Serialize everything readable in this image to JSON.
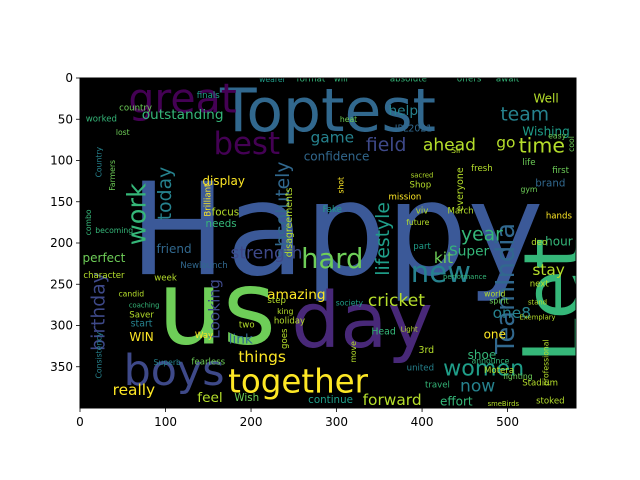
{
  "chart_data": {
    "type": "wordcloud",
    "title": "",
    "xlabel": "",
    "ylabel": "",
    "xlim": [
      0,
      580
    ],
    "ylim": [
      400,
      0
    ],
    "x_ticks": [
      0,
      100,
      200,
      300,
      400,
      500
    ],
    "y_ticks": [
      0,
      50,
      100,
      150,
      200,
      250,
      300,
      350
    ],
    "grid": false,
    "colors": {
      "background": "#000000",
      "palette": [
        "#440154",
        "#482878",
        "#3e4989",
        "#31688e",
        "#26828e",
        "#1f9e89",
        "#35b779",
        "#6ece58",
        "#b5de2b",
        "#fde725"
      ]
    },
    "words": [
      {
        "text": "Happy",
        "x": 300,
        "y": 185,
        "size": 150,
        "rot": 0,
        "color": "#3b5998"
      },
      {
        "text": "us",
        "x": 160,
        "y": 280,
        "size": 120,
        "rot": 0,
        "color": "#6ece58"
      },
      {
        "text": "Toptest",
        "x": 290,
        "y": 40,
        "size": 70,
        "rot": 0,
        "color": "#31688e"
      },
      {
        "text": "day",
        "x": 330,
        "y": 295,
        "size": 90,
        "rot": 0,
        "color": "#482878"
      },
      {
        "text": "Let",
        "x": 555,
        "y": 270,
        "size": 95,
        "rot": -90,
        "color": "#35b779"
      },
      {
        "text": "great",
        "x": 120,
        "y": 25,
        "size": 48,
        "rot": 0,
        "color": "#440154"
      },
      {
        "text": "best",
        "x": 195,
        "y": 80,
        "size": 36,
        "rot": 0,
        "color": "#440154"
      },
      {
        "text": "boys",
        "x": 110,
        "y": 355,
        "size": 50,
        "rot": 0,
        "color": "#3e4989"
      },
      {
        "text": "together",
        "x": 255,
        "y": 368,
        "size": 38,
        "rot": 0,
        "color": "#fde725"
      },
      {
        "text": "hard",
        "x": 295,
        "y": 220,
        "size": 32,
        "rot": 0,
        "color": "#6ece58"
      },
      {
        "text": "new",
        "x": 422,
        "y": 235,
        "size": 34,
        "rot": 0,
        "color": "#26828e"
      },
      {
        "text": "women",
        "x": 472,
        "y": 352,
        "size": 26,
        "rot": 0,
        "color": "#1f9e89"
      },
      {
        "text": "TeamIndia",
        "x": 498,
        "y": 255,
        "size": 30,
        "rot": -90,
        "color": "#31688e"
      },
      {
        "text": "work",
        "x": 67,
        "y": 165,
        "size": 30,
        "rot": -90,
        "color": "#35b779"
      },
      {
        "text": "today",
        "x": 100,
        "y": 140,
        "size": 22,
        "rot": -90,
        "color": "#26828e"
      },
      {
        "text": "absolutely",
        "x": 238,
        "y": 160,
        "size": 22,
        "rot": -90,
        "color": "#31688e"
      },
      {
        "text": "lifestyle",
        "x": 355,
        "y": 195,
        "size": 22,
        "rot": -90,
        "color": "#1f9e89"
      },
      {
        "text": "strength",
        "x": 218,
        "y": 213,
        "size": 20,
        "rot": 0,
        "color": "#3e4989"
      },
      {
        "text": "time",
        "x": 540,
        "y": 82,
        "size": 24,
        "rot": 0,
        "color": "#b5de2b"
      },
      {
        "text": "ahead",
        "x": 432,
        "y": 82,
        "size": 20,
        "rot": 0,
        "color": "#b5de2b"
      },
      {
        "text": "field",
        "x": 358,
        "y": 82,
        "size": 22,
        "rot": 0,
        "color": "#3e4989"
      },
      {
        "text": "go",
        "x": 498,
        "y": 78,
        "size": 18,
        "rot": 0,
        "color": "#b5de2b"
      },
      {
        "text": "team",
        "x": 520,
        "y": 45,
        "size": 22,
        "rot": 0,
        "color": "#26828e"
      },
      {
        "text": "year",
        "x": 470,
        "y": 190,
        "size": 22,
        "rot": 0,
        "color": "#35b779"
      },
      {
        "text": "cricket",
        "x": 370,
        "y": 270,
        "size": 20,
        "rot": 0,
        "color": "#b5de2b"
      },
      {
        "text": "stay",
        "x": 548,
        "y": 233,
        "size": 18,
        "rot": 0,
        "color": "#b5de2b"
      },
      {
        "text": "one8",
        "x": 505,
        "y": 285,
        "size": 18,
        "rot": 0,
        "color": "#26828e"
      },
      {
        "text": "Super",
        "x": 455,
        "y": 210,
        "size": 16,
        "rot": 0,
        "color": "#35b779"
      },
      {
        "text": "kit",
        "x": 425,
        "y": 218,
        "size": 18,
        "rot": 0,
        "color": "#6ece58"
      },
      {
        "text": "game",
        "x": 295,
        "y": 72,
        "size": 18,
        "rot": 0,
        "color": "#26828e"
      },
      {
        "text": "help",
        "x": 378,
        "y": 40,
        "size": 16,
        "rot": 0,
        "color": "#26828e"
      },
      {
        "text": "outstanding",
        "x": 120,
        "y": 45,
        "size": 16,
        "rot": 0,
        "color": "#35b779"
      },
      {
        "text": "confidence",
        "x": 300,
        "y": 95,
        "size": 14,
        "rot": 0,
        "color": "#31688e"
      },
      {
        "text": "Wishing",
        "x": 545,
        "y": 65,
        "size": 14,
        "rot": 0,
        "color": "#1f9e89"
      },
      {
        "text": "Well",
        "x": 545,
        "y": 25,
        "size": 14,
        "rot": 0,
        "color": "#b5de2b"
      },
      {
        "text": "IPL2021",
        "x": 390,
        "y": 62,
        "size": 11,
        "rot": 0,
        "color": "#31688e"
      },
      {
        "text": "amazing",
        "x": 253,
        "y": 263,
        "size": 16,
        "rot": 0,
        "color": "#fde725"
      },
      {
        "text": "birthday",
        "x": 22,
        "y": 283,
        "size": 22,
        "rot": -90,
        "color": "#3e4989"
      },
      {
        "text": "Looking",
        "x": 157,
        "y": 280,
        "size": 18,
        "rot": -90,
        "color": "#3e4989"
      },
      {
        "text": "link",
        "x": 188,
        "y": 317,
        "size": 16,
        "rot": 0,
        "color": "#31688e"
      },
      {
        "text": "things",
        "x": 213,
        "y": 338,
        "size": 18,
        "rot": 0,
        "color": "#fde725"
      },
      {
        "text": "really",
        "x": 63,
        "y": 378,
        "size": 18,
        "rot": 0,
        "color": "#fde725"
      },
      {
        "text": "feel",
        "x": 152,
        "y": 388,
        "size": 16,
        "rot": 0,
        "color": "#b5de2b"
      },
      {
        "text": "forward",
        "x": 365,
        "y": 390,
        "size": 18,
        "rot": 0,
        "color": "#b5de2b"
      },
      {
        "text": "continue",
        "x": 293,
        "y": 390,
        "size": 12,
        "rot": 0,
        "color": "#1f9e89"
      },
      {
        "text": "now",
        "x": 465,
        "y": 374,
        "size": 20,
        "rot": 0,
        "color": "#26828e"
      },
      {
        "text": "shoe",
        "x": 470,
        "y": 336,
        "size": 14,
        "rot": 0,
        "color": "#35b779"
      },
      {
        "text": "one",
        "x": 485,
        "y": 311,
        "size": 14,
        "rot": 0,
        "color": "#fde725"
      },
      {
        "text": "effort",
        "x": 440,
        "y": 392,
        "size": 14,
        "rot": 0,
        "color": "#35b779"
      },
      {
        "text": "display",
        "x": 168,
        "y": 125,
        "size": 14,
        "rot": 0,
        "color": "#fde725"
      },
      {
        "text": "perfect",
        "x": 28,
        "y": 218,
        "size": 14,
        "rot": 0,
        "color": "#6ece58"
      },
      {
        "text": "friend",
        "x": 110,
        "y": 207,
        "size": 14,
        "rot": 0,
        "color": "#31688e"
      },
      {
        "text": "WIN",
        "x": 72,
        "y": 314,
        "size": 14,
        "rot": 0,
        "color": "#fde725"
      },
      {
        "text": "start",
        "x": 72,
        "y": 298,
        "size": 11,
        "rot": 0,
        "color": "#26828e"
      },
      {
        "text": "hour",
        "x": 560,
        "y": 198,
        "size": 14,
        "rot": 0,
        "color": "#35b779"
      },
      {
        "text": "brand",
        "x": 550,
        "y": 128,
        "size": 12,
        "rot": 0,
        "color": "#31688e"
      },
      {
        "text": "focus",
        "x": 170,
        "y": 163,
        "size": 12,
        "rot": 0,
        "color": "#b5de2b"
      },
      {
        "text": "needs",
        "x": 165,
        "y": 177,
        "size": 12,
        "rot": 0,
        "color": "#35b779"
      },
      {
        "text": "Newlaunch",
        "x": 145,
        "y": 228,
        "size": 10,
        "rot": 0,
        "color": "#31688e"
      },
      {
        "text": "Way",
        "x": 145,
        "y": 313,
        "size": 10,
        "rot": 0,
        "color": "#fde725"
      },
      {
        "text": "Wish",
        "x": 195,
        "y": 388,
        "size": 12,
        "rot": 0,
        "color": "#6ece58"
      },
      {
        "text": "Head",
        "x": 355,
        "y": 308,
        "size": 11,
        "rot": 0,
        "color": "#35b779"
      },
      {
        "text": "3rd",
        "x": 405,
        "y": 330,
        "size": 11,
        "rot": 0,
        "color": "#b5de2b"
      },
      {
        "text": "travel",
        "x": 418,
        "y": 373,
        "size": 10,
        "rot": 0,
        "color": "#35b779"
      },
      {
        "text": "Stadium",
        "x": 538,
        "y": 370,
        "size": 10,
        "rot": 0,
        "color": "#b5de2b"
      },
      {
        "text": "Motera",
        "x": 490,
        "y": 355,
        "size": 10,
        "rot": 0,
        "color": "#b5de2b"
      },
      {
        "text": "fighting",
        "x": 512,
        "y": 362,
        "size": 9,
        "rot": 0,
        "color": "#6ece58"
      },
      {
        "text": "announce",
        "x": 480,
        "y": 343,
        "size": 9,
        "rot": 0,
        "color": "#35b779"
      },
      {
        "text": "stoked",
        "x": 550,
        "y": 392,
        "size": 10,
        "rot": 0,
        "color": "#b5de2b"
      },
      {
        "text": "fearless",
        "x": 150,
        "y": 345,
        "size": 10,
        "rot": 0,
        "color": "#6ece58"
      },
      {
        "text": "Superb",
        "x": 102,
        "y": 345,
        "size": 9,
        "rot": 0,
        "color": "#26828e"
      },
      {
        "text": "Saver",
        "x": 72,
        "y": 288,
        "size": 10,
        "rot": 0,
        "color": "#b5de2b"
      },
      {
        "text": "Consistency",
        "x": 22,
        "y": 336,
        "size": 9,
        "rot": -90,
        "color": "#26828e"
      },
      {
        "text": "Brilliant",
        "x": 150,
        "y": 148,
        "size": 10,
        "rot": -90,
        "color": "#fde725"
      },
      {
        "text": "combo",
        "x": 10,
        "y": 175,
        "size": 9,
        "rot": -90,
        "color": "#35b779"
      },
      {
        "text": "Farmers",
        "x": 38,
        "y": 118,
        "size": 9,
        "rot": -90,
        "color": "#6ece58"
      },
      {
        "text": "Country",
        "x": 22,
        "y": 102,
        "size": 9,
        "rot": -90,
        "color": "#26828e"
      },
      {
        "text": "worked",
        "x": 25,
        "y": 50,
        "size": 10,
        "rot": 0,
        "color": "#35b779"
      },
      {
        "text": "country",
        "x": 65,
        "y": 37,
        "size": 10,
        "rot": 0,
        "color": "#6ece58"
      },
      {
        "text": "finals",
        "x": 150,
        "y": 22,
        "size": 10,
        "rot": 0,
        "color": "#1f9e89"
      },
      {
        "text": "format",
        "x": 270,
        "y": 2,
        "size": 10,
        "rot": 0,
        "color": "#35b779"
      },
      {
        "text": "will",
        "x": 305,
        "y": 2,
        "size": 10,
        "rot": 0,
        "color": "#35b779"
      },
      {
        "text": "absolute",
        "x": 384,
        "y": 2,
        "size": 10,
        "rot": 0,
        "color": "#35b779"
      },
      {
        "text": "offers",
        "x": 455,
        "y": 2,
        "size": 10,
        "rot": 0,
        "color": "#35b779"
      },
      {
        "text": "await",
        "x": 500,
        "y": 2,
        "size": 10,
        "rot": 0,
        "color": "#35b779"
      },
      {
        "text": "wearer",
        "x": 225,
        "y": 2,
        "size": 9,
        "rot": 0,
        "color": "#1f9e89"
      },
      {
        "text": "heat",
        "x": 314,
        "y": 50,
        "size": 9,
        "rot": 0,
        "color": "#6ece58"
      },
      {
        "text": "cool",
        "x": 575,
        "y": 80,
        "size": 9,
        "rot": -90,
        "color": "#6ece58"
      },
      {
        "text": "first",
        "x": 562,
        "y": 113,
        "size": 10,
        "rot": 0,
        "color": "#6ece58"
      },
      {
        "text": "life",
        "x": 525,
        "y": 103,
        "size": 10,
        "rot": 0,
        "color": "#6ece58"
      },
      {
        "text": "gym",
        "x": 525,
        "y": 135,
        "size": 9,
        "rot": 0,
        "color": "#6ece58"
      },
      {
        "text": "hands",
        "x": 560,
        "y": 168,
        "size": 10,
        "rot": 0,
        "color": "#fde725"
      },
      {
        "text": "easy",
        "x": 558,
        "y": 70,
        "size": 9,
        "rot": 0,
        "color": "#6ece58"
      },
      {
        "text": "next",
        "x": 537,
        "y": 250,
        "size": 10,
        "rot": 0,
        "color": "#b5de2b"
      },
      {
        "text": "deo",
        "x": 537,
        "y": 200,
        "size": 10,
        "rot": 0,
        "color": "#b5de2b"
      },
      {
        "text": "Shop",
        "x": 398,
        "y": 130,
        "size": 10,
        "rot": 0,
        "color": "#b5de2b"
      },
      {
        "text": "March",
        "x": 445,
        "y": 162,
        "size": 10,
        "rot": 0,
        "color": "#b5de2b"
      },
      {
        "text": "fresh",
        "x": 470,
        "y": 110,
        "size": 10,
        "rot": 0,
        "color": "#b5de2b"
      },
      {
        "text": "everyone",
        "x": 445,
        "y": 135,
        "size": 11,
        "rot": -90,
        "color": "#b5de2b"
      },
      {
        "text": "mission",
        "x": 380,
        "y": 145,
        "size": 10,
        "rot": 0,
        "color": "#fde725"
      },
      {
        "text": "future",
        "x": 395,
        "y": 175,
        "size": 9,
        "rot": 0,
        "color": "#b5de2b"
      },
      {
        "text": "viv",
        "x": 400,
        "y": 162,
        "size": 10,
        "rot": 0,
        "color": "#b5de2b"
      },
      {
        "text": "Sir",
        "x": 440,
        "y": 88,
        "size": 9,
        "rot": 0,
        "color": "#b5de2b"
      },
      {
        "text": "Fake",
        "x": 295,
        "y": 160,
        "size": 10,
        "rot": 0,
        "color": "#1f9e89"
      },
      {
        "text": "holiday",
        "x": 245,
        "y": 295,
        "size": 10,
        "rot": 0,
        "color": "#b5de2b"
      },
      {
        "text": "step",
        "x": 230,
        "y": 270,
        "size": 10,
        "rot": 0,
        "color": "#b5de2b"
      },
      {
        "text": "king",
        "x": 240,
        "y": 283,
        "size": 9,
        "rot": 0,
        "color": "#b5de2b"
      },
      {
        "text": "two",
        "x": 195,
        "y": 300,
        "size": 10,
        "rot": 0,
        "color": "#b5de2b"
      },
      {
        "text": "week",
        "x": 100,
        "y": 243,
        "size": 10,
        "rot": 0,
        "color": "#b5de2b"
      },
      {
        "text": "character",
        "x": 28,
        "y": 240,
        "size": 10,
        "rot": 0,
        "color": "#b5de2b"
      },
      {
        "text": "society",
        "x": 315,
        "y": 273,
        "size": 9,
        "rot": 0,
        "color": "#1f9e89"
      },
      {
        "text": "part",
        "x": 400,
        "y": 205,
        "size": 10,
        "rot": 0,
        "color": "#1f9e89"
      },
      {
        "text": "united",
        "x": 398,
        "y": 352,
        "size": 10,
        "rot": 0,
        "color": "#26828e"
      },
      {
        "text": "goes",
        "x": 240,
        "y": 316,
        "size": 10,
        "rot": -90,
        "color": "#b5de2b"
      },
      {
        "text": "move",
        "x": 320,
        "y": 332,
        "size": 9,
        "rot": -90,
        "color": "#b5de2b"
      },
      {
        "text": "disagreements",
        "x": 245,
        "y": 175,
        "size": 11,
        "rot": -90,
        "color": "#b5de2b"
      },
      {
        "text": "professional",
        "x": 545,
        "y": 345,
        "size": 9,
        "rot": -90,
        "color": "#b5de2b"
      },
      {
        "text": "spirit",
        "x": 490,
        "y": 270,
        "size": 9,
        "rot": 0,
        "color": "#6ece58"
      },
      {
        "text": "world",
        "x": 485,
        "y": 262,
        "size": 9,
        "rot": 0,
        "color": "#b5de2b"
      },
      {
        "text": "performance",
        "x": 450,
        "y": 241,
        "size": 8,
        "rot": 0,
        "color": "#35b779"
      },
      {
        "text": "lost",
        "x": 50,
        "y": 66,
        "size": 9,
        "rot": 0,
        "color": "#6ece58"
      },
      {
        "text": "shot",
        "x": 305,
        "y": 130,
        "size": 9,
        "rot": -90,
        "color": "#fde725"
      },
      {
        "text": "candid",
        "x": 60,
        "y": 262,
        "size": 9,
        "rot": 0,
        "color": "#b5de2b"
      },
      {
        "text": "coaching",
        "x": 75,
        "y": 276,
        "size": 8,
        "rot": 0,
        "color": "#35b779"
      },
      {
        "text": "becoming",
        "x": 40,
        "y": 185,
        "size": 9,
        "rot": 0,
        "color": "#35b779"
      },
      {
        "text": "Exemplary",
        "x": 535,
        "y": 290,
        "size": 8,
        "rot": 0,
        "color": "#b5de2b"
      },
      {
        "text": "Light",
        "x": 385,
        "y": 305,
        "size": 8,
        "rot": 0,
        "color": "#b5de2b"
      },
      {
        "text": "sacred",
        "x": 400,
        "y": 118,
        "size": 8,
        "rot": 0,
        "color": "#b5de2b"
      },
      {
        "text": "stand",
        "x": 535,
        "y": 272,
        "size": 8,
        "rot": 0,
        "color": "#b5de2b"
      },
      {
        "text": "smeBirds",
        "x": 495,
        "y": 395,
        "size": 8,
        "rot": 0,
        "color": "#b5de2b"
      }
    ]
  }
}
